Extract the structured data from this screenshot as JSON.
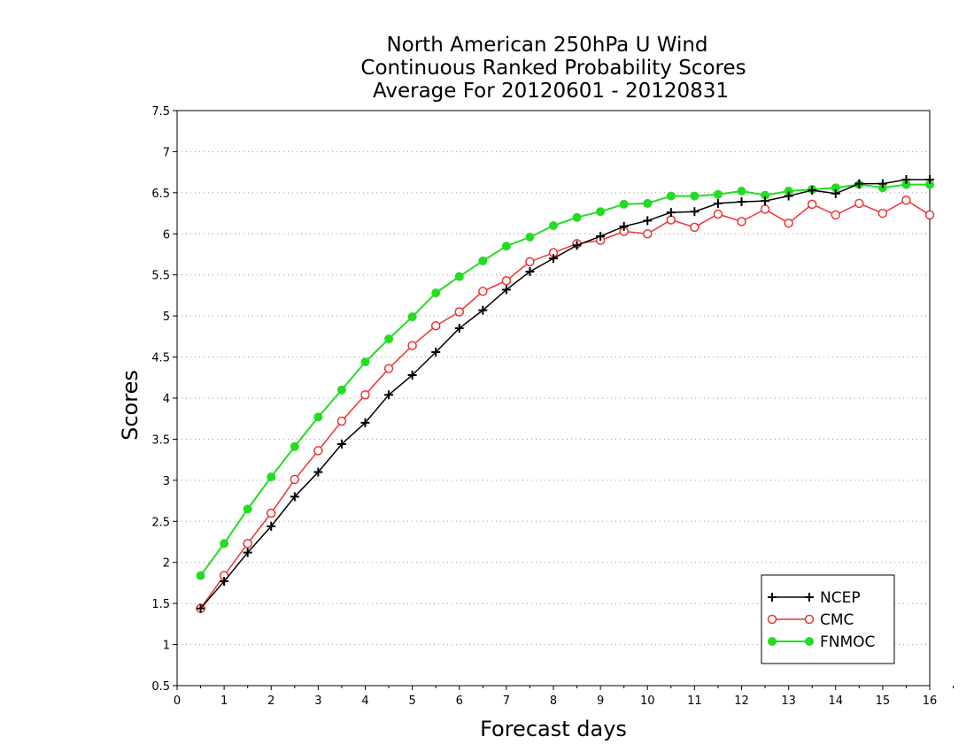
{
  "chart_data": {
    "type": "line",
    "title_lines": [
      "North American 250hPa U Wind",
      "Continuous Ranked Probability Scores",
      "Average For 20120601 - 20120831"
    ],
    "xlabel": "Forecast days",
    "ylabel": "Scores",
    "xlim": [
      0,
      16
    ],
    "ylim": [
      0.5,
      7.5
    ],
    "x_ticks": [
      "0",
      "1",
      "2",
      "3",
      "4",
      "5",
      "6",
      "7",
      "8",
      "9",
      "10",
      "11",
      "12",
      "13",
      "14",
      "15",
      "16"
    ],
    "y_ticks": [
      "0.5",
      "1",
      "1.5",
      "2",
      "2.5",
      "3",
      "3.5",
      "4",
      "4.5",
      "5",
      "5.5",
      "6",
      "6.5",
      "7",
      "7.5"
    ],
    "grid": "horizontal-dotted",
    "legend_position": "bottom-right",
    "x": [
      0.5,
      1,
      1.5,
      2,
      2.5,
      3,
      3.5,
      4,
      4.5,
      5,
      5.5,
      6,
      6.5,
      7,
      7.5,
      8,
      8.5,
      9,
      9.5,
      10,
      10.5,
      11,
      11.5,
      12,
      12.5,
      13,
      13.5,
      14,
      14.5,
      15,
      15.5,
      16
    ],
    "series": [
      {
        "name": "NCEP",
        "color": "#000000",
        "marker": "plus",
        "values": [
          1.44,
          1.77,
          2.12,
          2.44,
          2.8,
          3.1,
          3.44,
          3.7,
          4.04,
          4.28,
          4.56,
          4.85,
          5.07,
          5.32,
          5.54,
          5.7,
          5.86,
          5.97,
          6.09,
          6.16,
          6.26,
          6.27,
          6.37,
          6.39,
          6.4,
          6.46,
          6.53,
          6.49,
          6.61,
          6.61,
          6.66,
          6.66
        ]
      },
      {
        "name": "CMC",
        "color": "#ee3333",
        "marker": "open-circle",
        "values": [
          1.44,
          1.84,
          2.23,
          2.6,
          3.01,
          3.36,
          3.72,
          4.04,
          4.36,
          4.64,
          4.88,
          5.05,
          5.3,
          5.43,
          5.66,
          5.77,
          5.88,
          5.92,
          6.03,
          6.0,
          6.17,
          6.08,
          6.24,
          6.15,
          6.3,
          6.13,
          6.36,
          6.23,
          6.37,
          6.25,
          6.41,
          6.23
        ]
      },
      {
        "name": "FNMOC",
        "color": "#22dd22",
        "marker": "filled-circle",
        "values": [
          1.84,
          2.23,
          2.65,
          3.04,
          3.41,
          3.77,
          4.1,
          4.44,
          4.72,
          4.99,
          5.28,
          5.48,
          5.67,
          5.85,
          5.96,
          6.1,
          6.2,
          6.27,
          6.36,
          6.37,
          6.46,
          6.46,
          6.48,
          6.52,
          6.47,
          6.52,
          6.54,
          6.56,
          6.6,
          6.56,
          6.6,
          6.6
        ]
      }
    ]
  }
}
